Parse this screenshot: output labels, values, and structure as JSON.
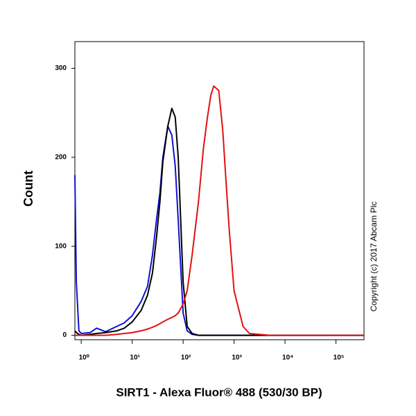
{
  "chart_data": {
    "type": "line",
    "x_label": "SIRT1 - Alexa Fluor® 488 (530/30 BP)",
    "y_label": "Count",
    "annotation": "Copyright (c) 2017 Abcam Plc",
    "xscale": "log",
    "xlim": [
      0.75,
      355000
    ],
    "ylim": [
      -5,
      330
    ],
    "xticks": [
      {
        "value": 1,
        "label": "10⁰"
      },
      {
        "value": 10,
        "label": "10¹"
      },
      {
        "value": 100,
        "label": "10²"
      },
      {
        "value": 1000,
        "label": "10³"
      },
      {
        "value": 10000,
        "label": "10⁴"
      },
      {
        "value": 100000,
        "label": "10⁵"
      }
    ],
    "yticks": [
      0,
      100,
      200,
      300
    ],
    "x": [
      0.75,
      0.8,
      0.9,
      1,
      1.5,
      2,
      3,
      5,
      7,
      10,
      15,
      20,
      25,
      30,
      35,
      40,
      50,
      60,
      70,
      80,
      100,
      120,
      150,
      200,
      250,
      300,
      350,
      400,
      500,
      600,
      700,
      800,
      1000,
      1500,
      2000,
      5000,
      10000,
      100000,
      355000
    ],
    "series": [
      {
        "color": "#1010d0",
        "values": [
          180,
          60,
          5,
          2,
          3,
          8,
          4,
          10,
          14,
          22,
          38,
          55,
          90,
          130,
          160,
          200,
          235,
          225,
          190,
          130,
          25,
          5,
          1,
          0,
          0,
          0,
          0,
          0,
          0,
          0,
          0,
          0,
          0,
          0,
          0,
          0,
          0,
          0,
          0
        ]
      },
      {
        "color": "#000000",
        "values": [
          5,
          3,
          1,
          0,
          1,
          2,
          3,
          5,
          8,
          15,
          28,
          45,
          70,
          110,
          150,
          195,
          235,
          255,
          245,
          200,
          60,
          10,
          2,
          0,
          0,
          0,
          0,
          0,
          0,
          0,
          0,
          0,
          0,
          0,
          0,
          0,
          0,
          0,
          0
        ]
      },
      {
        "color": "#e01010",
        "values": [
          0,
          0,
          0,
          0,
          0,
          0,
          0,
          1,
          2,
          3,
          5,
          7,
          9,
          11,
          13,
          15,
          18,
          20,
          22,
          25,
          35,
          50,
          90,
          150,
          210,
          245,
          270,
          280,
          275,
          230,
          170,
          120,
          50,
          10,
          2,
          0,
          0,
          0,
          0
        ]
      }
    ]
  }
}
